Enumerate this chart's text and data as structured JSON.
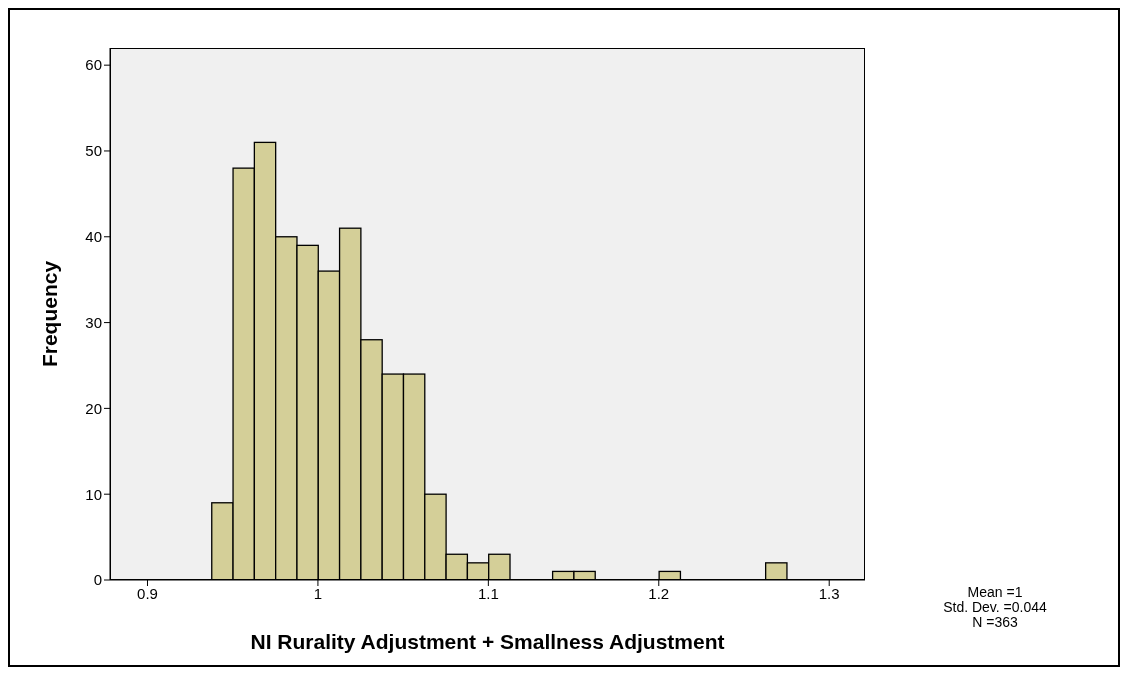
{
  "chart_data": {
    "type": "histogram",
    "ylabel": "Frequency",
    "xlabel": "NI Rurality Adjustment + Smallness Adjustment",
    "bins": [
      0.9375,
      0.95,
      0.9625,
      0.975,
      0.9875,
      1.0,
      1.0125,
      1.025,
      1.0375,
      1.05,
      1.0625,
      1.075,
      1.0875,
      1.1,
      1.1125,
      1.125,
      1.1375,
      1.15,
      1.1625,
      1.175,
      1.1875,
      1.2,
      1.2125,
      1.225,
      1.2375,
      1.25,
      1.2625,
      1.275
    ],
    "values": [
      9,
      48,
      51,
      40,
      39,
      36,
      41,
      28,
      24,
      24,
      10,
      3,
      2,
      3,
      0,
      0,
      1,
      1,
      0,
      0,
      0,
      1,
      0,
      0,
      0,
      0,
      2
    ],
    "color": "#d4cf98",
    "xlim": [
      0.878,
      1.321
    ],
    "xticks": [
      0.9,
      1,
      1.1,
      1.2,
      1.3
    ],
    "ylim": [
      0,
      62
    ],
    "yticks": [
      0,
      10,
      20,
      30,
      40,
      50,
      60
    ],
    "grid": false,
    "annotations": [
      "Mean =1",
      "Std. Dev. =0.044",
      "N =363"
    ]
  }
}
